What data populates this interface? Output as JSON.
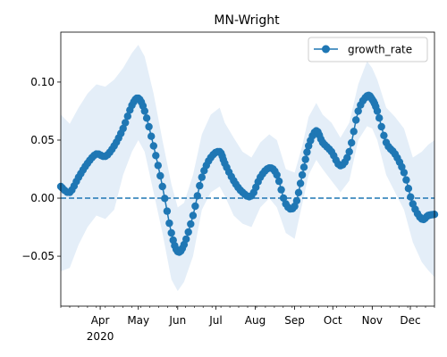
{
  "chart_data": {
    "type": "line",
    "title": "MN-Wright",
    "xlabel": "",
    "ylabel": "",
    "legend": {
      "placement": "top-right",
      "entries": [
        "growth_rate"
      ]
    },
    "x_ticks": [
      {
        "date": "2020-04-01",
        "label": "Apr",
        "sublabel": "2020"
      },
      {
        "date": "2020-05-01",
        "label": "May",
        "sublabel": ""
      },
      {
        "date": "2020-06-01",
        "label": "Jun",
        "sublabel": ""
      },
      {
        "date": "2020-07-01",
        "label": "Jul",
        "sublabel": ""
      },
      {
        "date": "2020-08-01",
        "label": "Aug",
        "sublabel": ""
      },
      {
        "date": "2020-09-01",
        "label": "Sep",
        "sublabel": ""
      },
      {
        "date": "2020-10-01",
        "label": "Oct",
        "sublabel": ""
      },
      {
        "date": "2020-11-01",
        "label": "Nov",
        "sublabel": ""
      },
      {
        "date": "2020-12-01",
        "label": "Dec",
        "sublabel": ""
      }
    ],
    "y_ticks": [
      {
        "value": -0.05,
        "label": "−0.05"
      },
      {
        "value": 0.0,
        "label": "0.00"
      },
      {
        "value": 0.05,
        "label": "0.05"
      },
      {
        "value": 0.1,
        "label": "0.10"
      }
    ],
    "xlim": [
      "2020-03-01",
      "2020-12-20"
    ],
    "ylim": [
      -0.093,
      0.143
    ],
    "reference_line": {
      "y": 0.0,
      "style": "dashed"
    },
    "colors": {
      "series": "#1f77b4",
      "band": "#dbe8f5",
      "reference": "#1f77b4"
    },
    "series": [
      {
        "name": "growth_rate",
        "x": [
          "2020-03-01",
          "2020-03-08",
          "2020-03-15",
          "2020-03-22",
          "2020-03-29",
          "2020-04-05",
          "2020-04-12",
          "2020-04-19",
          "2020-04-26",
          "2020-05-01",
          "2020-05-06",
          "2020-05-13",
          "2020-05-20",
          "2020-05-27",
          "2020-06-01",
          "2020-06-06",
          "2020-06-13",
          "2020-06-20",
          "2020-06-27",
          "2020-07-04",
          "2020-07-08",
          "2020-07-15",
          "2020-07-22",
          "2020-07-29",
          "2020-08-05",
          "2020-08-12",
          "2020-08-18",
          "2020-08-25",
          "2020-09-01",
          "2020-09-07",
          "2020-09-12",
          "2020-09-18",
          "2020-09-23",
          "2020-09-30",
          "2020-10-07",
          "2020-10-14",
          "2020-10-21",
          "2020-10-28",
          "2020-11-01",
          "2020-11-05",
          "2020-11-12",
          "2020-11-19",
          "2020-11-26",
          "2020-12-03",
          "2020-12-10",
          "2020-12-15",
          "2020-12-20"
        ],
        "y": [
          0.01,
          0.005,
          0.018,
          0.03,
          0.038,
          0.036,
          0.045,
          0.06,
          0.08,
          0.086,
          0.075,
          0.045,
          0.01,
          -0.03,
          -0.046,
          -0.04,
          -0.015,
          0.018,
          0.035,
          0.04,
          0.03,
          0.015,
          0.005,
          0.002,
          0.018,
          0.026,
          0.02,
          -0.005,
          -0.007,
          0.02,
          0.045,
          0.058,
          0.048,
          0.04,
          0.028,
          0.04,
          0.075,
          0.088,
          0.085,
          0.075,
          0.048,
          0.038,
          0.022,
          -0.005,
          -0.018,
          -0.015,
          -0.014
        ],
        "band_low": [
          -0.063,
          -0.06,
          -0.04,
          -0.025,
          -0.015,
          -0.018,
          -0.01,
          0.02,
          0.04,
          0.05,
          0.04,
          0.005,
          -0.03,
          -0.07,
          -0.08,
          -0.072,
          -0.05,
          -0.01,
          0.005,
          0.01,
          0.002,
          -0.015,
          -0.022,
          -0.025,
          -0.008,
          0.0,
          -0.008,
          -0.03,
          -0.035,
          -0.005,
          0.02,
          0.033,
          0.025,
          0.015,
          0.005,
          0.015,
          0.05,
          0.062,
          0.06,
          0.05,
          0.02,
          0.005,
          -0.01,
          -0.038,
          -0.055,
          -0.062,
          -0.068
        ],
        "band_high": [
          0.072,
          0.064,
          0.078,
          0.09,
          0.098,
          0.096,
          0.102,
          0.112,
          0.125,
          0.132,
          0.122,
          0.09,
          0.05,
          0.012,
          -0.008,
          -0.004,
          0.02,
          0.055,
          0.072,
          0.078,
          0.065,
          0.052,
          0.04,
          0.035,
          0.048,
          0.055,
          0.05,
          0.025,
          0.022,
          0.045,
          0.07,
          0.082,
          0.072,
          0.065,
          0.052,
          0.065,
          0.098,
          0.118,
          0.112,
          0.102,
          0.078,
          0.07,
          0.06,
          0.035,
          0.04,
          0.046,
          0.05
        ]
      }
    ]
  }
}
